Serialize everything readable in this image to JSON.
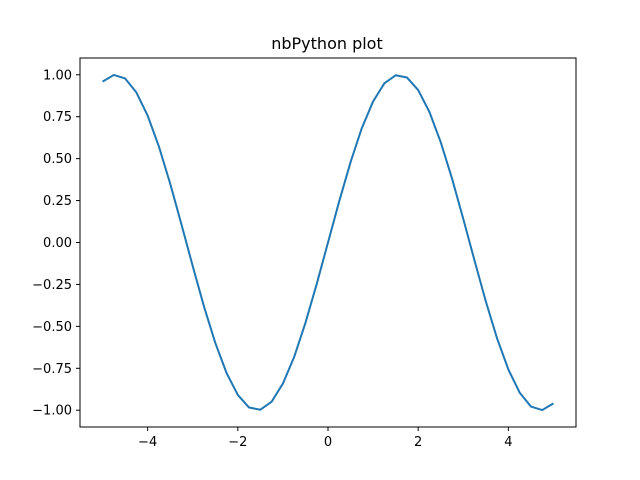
{
  "chart_data": {
    "type": "line",
    "title": "nbPython plot",
    "xlabel": "",
    "ylabel": "",
    "xlim": [
      -5.5,
      5.5
    ],
    "ylim": [
      -1.1,
      1.1
    ],
    "grid": false,
    "x_ticks": [
      -4,
      -2,
      0,
      2,
      4
    ],
    "x_tick_labels": [
      "−4",
      "−2",
      "0",
      "2",
      "4"
    ],
    "y_ticks": [
      1.0,
      0.75,
      0.5,
      0.25,
      0.0,
      -0.25,
      -0.5,
      -0.75,
      -1.0
    ],
    "y_tick_labels": [
      "1.00",
      "0.75",
      "0.50",
      "0.25",
      "0.00",
      "−0.25",
      "−0.50",
      "−0.75",
      "−1.00"
    ],
    "series": [
      {
        "color": "#1f77b4",
        "x": [
          -5.0,
          -4.75,
          -4.5,
          -4.25,
          -4.0,
          -3.75,
          -3.5,
          -3.25,
          -3.0,
          -2.75,
          -2.5,
          -2.25,
          -2.0,
          -1.75,
          -1.5,
          -1.25,
          -1.0,
          -0.75,
          -0.5,
          -0.25,
          0.0,
          0.25,
          0.5,
          0.75,
          1.0,
          1.25,
          1.5,
          1.75,
          2.0,
          2.25,
          2.5,
          2.75,
          3.0,
          3.25,
          3.5,
          3.75,
          4.0,
          4.25,
          4.5,
          4.75,
          5.0
        ],
        "y": [
          0.959,
          0.999,
          0.978,
          0.895,
          0.757,
          0.572,
          0.351,
          0.108,
          -0.141,
          -0.382,
          -0.598,
          -0.778,
          -0.909,
          -0.984,
          -0.997,
          -0.949,
          -0.841,
          -0.682,
          -0.479,
          -0.247,
          0.0,
          0.247,
          0.479,
          0.682,
          0.841,
          0.949,
          0.997,
          0.984,
          0.909,
          0.778,
          0.598,
          0.382,
          0.141,
          -0.108,
          -0.351,
          -0.572,
          -0.757,
          -0.895,
          -0.978,
          -0.999,
          -0.959
        ]
      }
    ]
  }
}
